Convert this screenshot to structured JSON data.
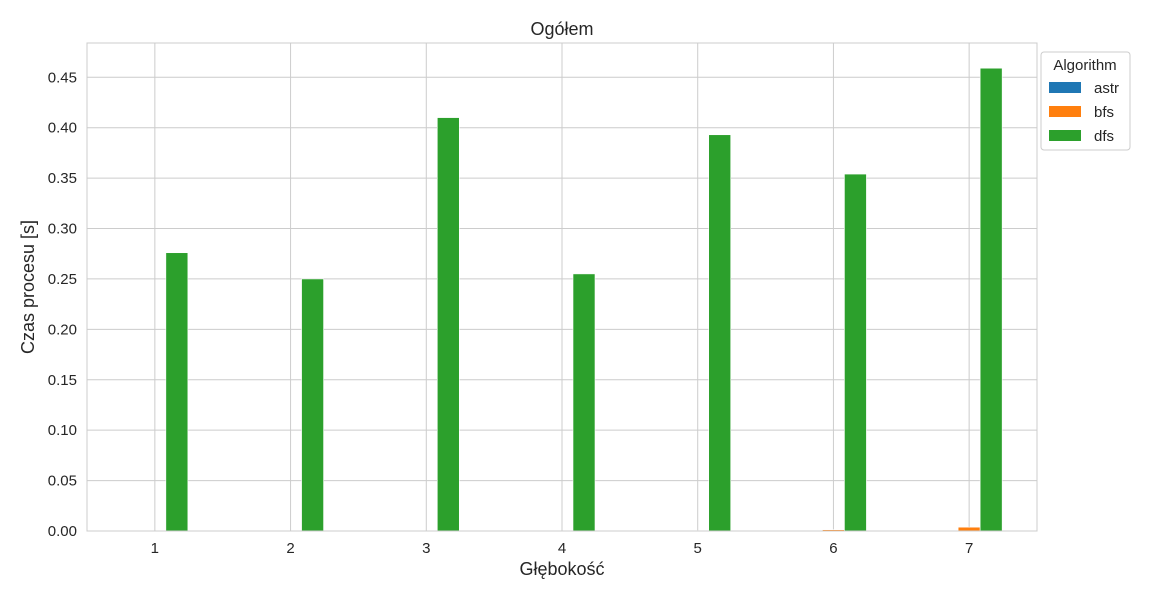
{
  "chart_data": {
    "type": "bar",
    "title": "Ogółem",
    "xlabel": "Głębokość",
    "ylabel": "Czas procesu [s]",
    "categories": [
      "1",
      "2",
      "3",
      "4",
      "5",
      "6",
      "7"
    ],
    "ylim": [
      0,
      0.484
    ],
    "yticks": [
      "0.00",
      "0.05",
      "0.10",
      "0.15",
      "0.20",
      "0.25",
      "0.30",
      "0.35",
      "0.40",
      "0.45"
    ],
    "grid": true,
    "legend": {
      "title": "Algorithm",
      "placement": "upper-right-outside"
    },
    "series": [
      {
        "name": "astr",
        "color": "#1f77b4",
        "values": [
          0.0001,
          0.0001,
          0.0001,
          0.0001,
          0.0001,
          0.0002,
          0.0004
        ]
      },
      {
        "name": "bfs",
        "color": "#ff7f0e",
        "values": [
          0.0001,
          0.0001,
          0.0001,
          0.0002,
          0.0004,
          0.0013,
          0.0038
        ]
      },
      {
        "name": "dfs",
        "color": "#2ca02c",
        "values": [
          0.276,
          0.25,
          0.41,
          0.255,
          0.393,
          0.354,
          0.459
        ]
      }
    ]
  }
}
